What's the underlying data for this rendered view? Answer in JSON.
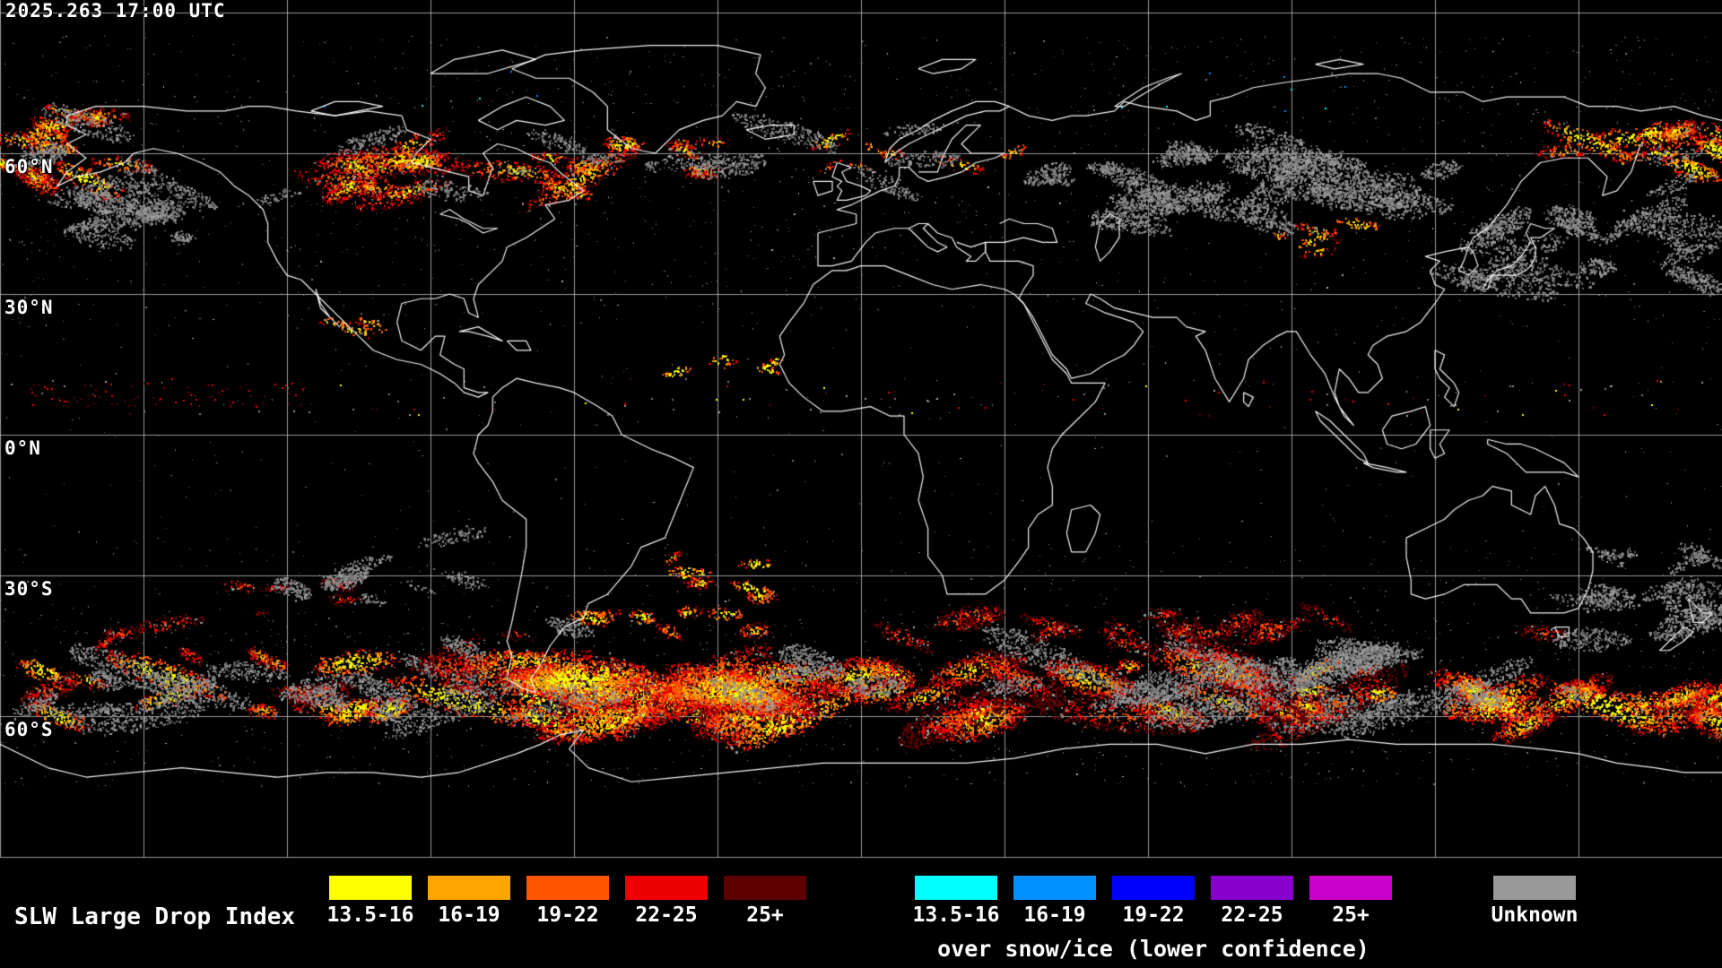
{
  "header": {
    "timestamp": "2025.263 17:00 UTC"
  },
  "map": {
    "projection": "equirectangular",
    "lat_labels": [
      {
        "label": "60°N",
        "lat": 60
      },
      {
        "label": "30°N",
        "lat": 30
      },
      {
        "label": "0°N",
        "lat": 0
      },
      {
        "label": "30°S",
        "lat": -30
      },
      {
        "label": "60°S",
        "lat": -60
      }
    ],
    "grid": {
      "lon_step_deg": 30,
      "lat_step_deg": 30
    },
    "colors": {
      "background": "#000000",
      "coastline": "#ffffff",
      "gridline": "#bfbfbf"
    }
  },
  "legend": {
    "title": "SLW Large Drop Index",
    "primary": [
      {
        "label": "13.5-16",
        "color": "#ffff00"
      },
      {
        "label": "16-19",
        "color": "#ffa500"
      },
      {
        "label": "19-22",
        "color": "#ff5500"
      },
      {
        "label": "22-25",
        "color": "#ee0000"
      },
      {
        "label": "25+",
        "color": "#5e0000"
      }
    ],
    "snow_ice": {
      "subtitle": "over snow/ice (lower confidence)",
      "items": [
        {
          "label": "13.5-16",
          "color": "#00ffff"
        },
        {
          "label": "16-19",
          "color": "#0090ff"
        },
        {
          "label": "19-22",
          "color": "#0000ff"
        },
        {
          "label": "22-25",
          "color": "#8800cc"
        },
        {
          "label": "25+",
          "color": "#cc00cc"
        }
      ]
    },
    "unknown": {
      "label": "Unknown",
      "color": "#999999"
    }
  }
}
